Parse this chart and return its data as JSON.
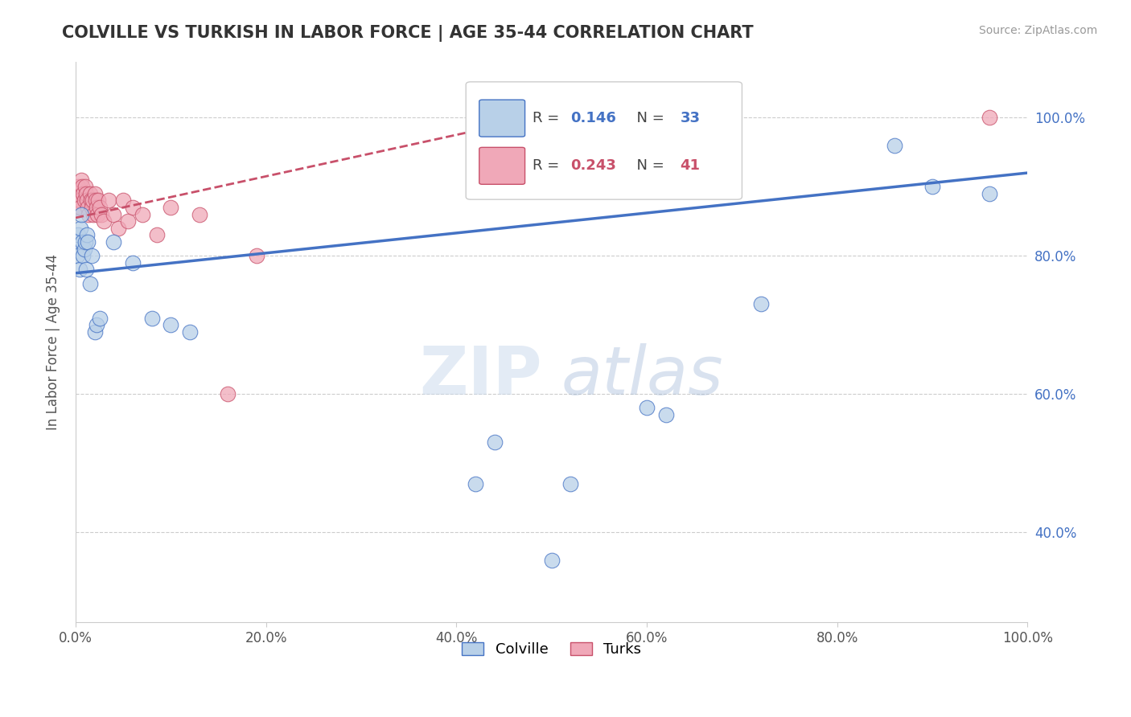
{
  "title": "COLVILLE VS TURKISH IN LABOR FORCE | AGE 35-44 CORRELATION CHART",
  "source": "Source: ZipAtlas.com",
  "ylabel": "In Labor Force | Age 35-44",
  "colville_R": 0.146,
  "colville_N": 33,
  "turks_R": 0.243,
  "turks_N": 41,
  "colville_color": "#b8d0e8",
  "turks_color": "#f0a8b8",
  "colville_line_color": "#4472c4",
  "turks_line_color": "#c8506a",
  "colville_x": [
    0.001,
    0.002,
    0.003,
    0.004,
    0.005,
    0.006,
    0.007,
    0.008,
    0.009,
    0.01,
    0.011,
    0.012,
    0.013,
    0.015,
    0.017,
    0.02,
    0.022,
    0.025,
    0.04,
    0.06,
    0.08,
    0.1,
    0.12,
    0.42,
    0.44,
    0.5,
    0.52,
    0.6,
    0.62,
    0.72,
    0.86,
    0.9,
    0.96
  ],
  "colville_y": [
    0.82,
    0.8,
    0.83,
    0.78,
    0.84,
    0.86,
    0.82,
    0.8,
    0.81,
    0.82,
    0.78,
    0.83,
    0.82,
    0.76,
    0.8,
    0.69,
    0.7,
    0.71,
    0.82,
    0.79,
    0.71,
    0.7,
    0.69,
    0.47,
    0.53,
    0.36,
    0.47,
    0.58,
    0.57,
    0.73,
    0.96,
    0.9,
    0.89
  ],
  "turks_x": [
    0.0005,
    0.001,
    0.002,
    0.003,
    0.004,
    0.005,
    0.006,
    0.007,
    0.008,
    0.009,
    0.01,
    0.011,
    0.012,
    0.013,
    0.014,
    0.015,
    0.016,
    0.017,
    0.018,
    0.019,
    0.02,
    0.021,
    0.022,
    0.023,
    0.024,
    0.025,
    0.027,
    0.03,
    0.035,
    0.04,
    0.045,
    0.05,
    0.055,
    0.06,
    0.07,
    0.085,
    0.1,
    0.13,
    0.16,
    0.19,
    0.96
  ],
  "turks_y": [
    0.88,
    0.87,
    0.89,
    0.9,
    0.88,
    0.87,
    0.91,
    0.9,
    0.89,
    0.88,
    0.9,
    0.89,
    0.88,
    0.87,
    0.86,
    0.89,
    0.88,
    0.87,
    0.88,
    0.86,
    0.89,
    0.88,
    0.87,
    0.86,
    0.88,
    0.87,
    0.86,
    0.85,
    0.88,
    0.86,
    0.84,
    0.88,
    0.85,
    0.87,
    0.86,
    0.83,
    0.87,
    0.86,
    0.6,
    0.8,
    1.0
  ],
  "xlim": [
    0.0,
    1.0
  ],
  "ylim": [
    0.27,
    1.08
  ],
  "yticks": [
    0.4,
    0.6,
    0.8,
    1.0
  ],
  "ytick_labels": [
    "40.0%",
    "60.0%",
    "80.0%",
    "100.0%"
  ],
  "xtick_labels": [
    "0.0%",
    "20.0%",
    "40.0%",
    "60.0%",
    "80.0%",
    "100.0%"
  ],
  "xticks": [
    0.0,
    0.2,
    0.4,
    0.6,
    0.8,
    1.0
  ],
  "colville_trend_x": [
    0.0,
    1.0
  ],
  "colville_trend_y": [
    0.775,
    0.92
  ],
  "turks_trend_x": [
    0.0,
    0.45
  ],
  "turks_trend_y": [
    0.855,
    0.99
  ],
  "watermark_zip": "ZIP",
  "watermark_atlas": "atlas",
  "background_color": "#ffffff"
}
